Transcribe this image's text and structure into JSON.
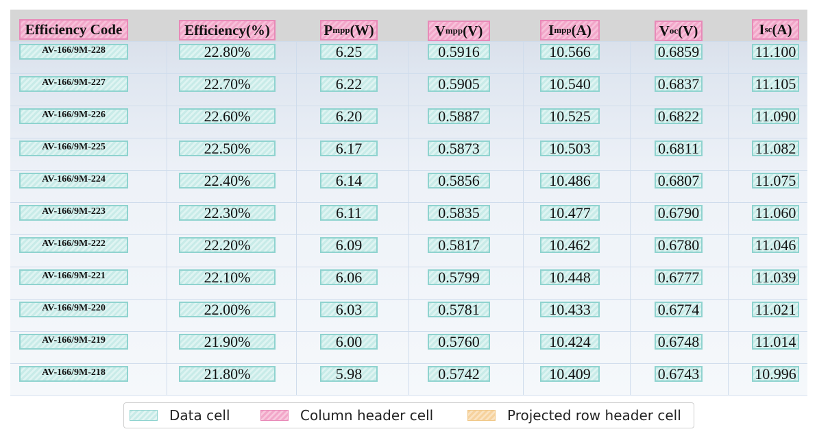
{
  "table": {
    "headers": [
      {
        "main": "Efficiency Code",
        "sub": "",
        "tail": ""
      },
      {
        "main": "Efficiency(%)",
        "sub": "",
        "tail": ""
      },
      {
        "main": "P",
        "sub": "mpp",
        "tail": "(W)"
      },
      {
        "main": "V",
        "sub": "mpp",
        "tail": "(V)"
      },
      {
        "main": "I",
        "sub": "mpp",
        "tail": "(A)"
      },
      {
        "main": "V",
        "sub": "oc",
        "tail": "(V)"
      },
      {
        "main": "I",
        "sub": "sc",
        "tail": " (A)"
      }
    ],
    "rows": [
      [
        "AV-166/9M-228",
        "22.80%",
        "6.25",
        "0.5916",
        "10.566",
        "0.6859",
        "11.100"
      ],
      [
        "AV-166/9M-227",
        "22.70%",
        "6.22",
        "0.5905",
        "10.540",
        "0.6837",
        "11.105"
      ],
      [
        "AV-166/9M-226",
        "22.60%",
        "6.20",
        "0.5887",
        "10.525",
        "0.6822",
        "11.090"
      ],
      [
        "AV-166/9M-225",
        "22.50%",
        "6.17",
        "0.5873",
        "10.503",
        "0.6811",
        "11.082"
      ],
      [
        "AV-166/9M-224",
        "22.40%",
        "6.14",
        "0.5856",
        "10.486",
        "0.6807",
        "11.075"
      ],
      [
        "AV-166/9M-223",
        "22.30%",
        "6.11",
        "0.5835",
        "10.477",
        "0.6790",
        "11.060"
      ],
      [
        "AV-166/9M-222",
        "22.20%",
        "6.09",
        "0.5817",
        "10.462",
        "0.6780",
        "11.046"
      ],
      [
        "AV-166/9M-221",
        "22.10%",
        "6.06",
        "0.5799",
        "10.448",
        "0.6777",
        "11.039"
      ],
      [
        "AV-166/9M-220",
        "22.00%",
        "6.03",
        "0.5781",
        "10.433",
        "0.6774",
        "11.021"
      ],
      [
        "AV-166/9M-219",
        "21.90%",
        "6.00",
        "0.5760",
        "10.424",
        "0.6748",
        "11.014"
      ],
      [
        "AV-166/9M-218",
        "21.80%",
        "5.98",
        "0.5742",
        "10.409",
        "0.6743",
        "10.996"
      ]
    ]
  },
  "legend": {
    "data_cell": "Data cell",
    "column_header_cell": "Column header cell",
    "projected_row_header_cell": "Projected row header cell"
  },
  "colors": {
    "data_cell": "#c8ebe8",
    "column_header_cell": "#f2a7c9",
    "projected_row_header_cell": "#f6d29e",
    "header_band": "#d6d6d6"
  }
}
